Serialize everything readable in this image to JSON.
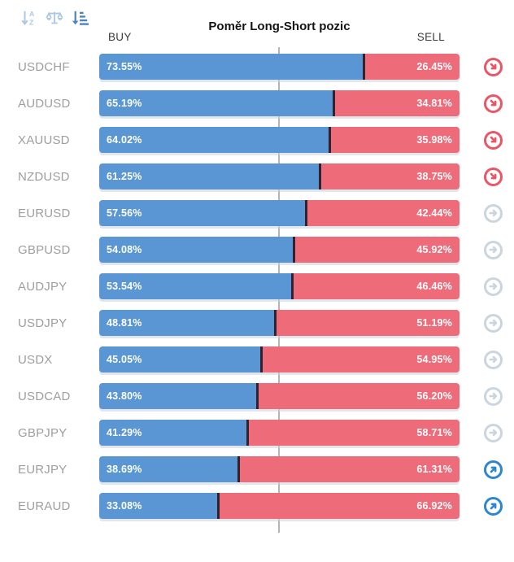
{
  "header": {
    "title": "Poměr Long-Short pozic",
    "buy_label": "BUY",
    "sell_label": "SELL"
  },
  "toolbar": {
    "icons": [
      {
        "name": "sort-alphabetical-icon",
        "state": "inactive"
      },
      {
        "name": "balance-scale-icon",
        "state": "inactive"
      },
      {
        "name": "sort-by-value-icon",
        "state": "active"
      }
    ]
  },
  "colors": {
    "buy": "#5996d3",
    "sell": "#ee6b7a",
    "divider": "#33222e",
    "centerline": "#b5b5b5",
    "label": "#9e9e9e",
    "title": "#141414",
    "header": "#3d3d3d",
    "trend_down": "#ec5565",
    "trend_neutral": "#cbd5e0",
    "trend_up": "#2d85d3",
    "toolbar_light": "#abc8e4",
    "toolbar_dark": "#4d84c0"
  },
  "chart_data": {
    "type": "bar",
    "orientation": "horizontal-stacked",
    "title": "Poměr Long-Short pozic",
    "xlim": [
      0,
      100
    ],
    "midline_pct": 50,
    "legend": [
      "BUY",
      "SELL"
    ],
    "categories": [
      "USDCHF",
      "AUDUSD",
      "XAUUSD",
      "NZDUSD",
      "EURUSD",
      "GBPUSD",
      "AUDJPY",
      "USDJPY",
      "USDX",
      "USDCAD",
      "GBPJPY",
      "EURJPY",
      "EURAUD"
    ],
    "series": [
      {
        "name": "BUY",
        "values": [
          73.55,
          65.19,
          64.02,
          61.25,
          57.56,
          54.08,
          53.54,
          48.81,
          45.05,
          43.8,
          41.29,
          38.69,
          33.08
        ]
      },
      {
        "name": "SELL",
        "values": [
          26.45,
          34.81,
          35.98,
          38.75,
          42.44,
          45.92,
          46.46,
          51.19,
          54.95,
          56.2,
          58.71,
          61.31,
          66.92
        ]
      }
    ],
    "rows": [
      {
        "symbol": "USDCHF",
        "buy": 73.55,
        "sell": 26.45,
        "buy_label": "73.55%",
        "sell_label": "26.45%",
        "trend": "down"
      },
      {
        "symbol": "AUDUSD",
        "buy": 65.19,
        "sell": 34.81,
        "buy_label": "65.19%",
        "sell_label": "34.81%",
        "trend": "down"
      },
      {
        "symbol": "XAUUSD",
        "buy": 64.02,
        "sell": 35.98,
        "buy_label": "64.02%",
        "sell_label": "35.98%",
        "trend": "down"
      },
      {
        "symbol": "NZDUSD",
        "buy": 61.25,
        "sell": 38.75,
        "buy_label": "61.25%",
        "sell_label": "38.75%",
        "trend": "down"
      },
      {
        "symbol": "EURUSD",
        "buy": 57.56,
        "sell": 42.44,
        "buy_label": "57.56%",
        "sell_label": "42.44%",
        "trend": "neutral"
      },
      {
        "symbol": "GBPUSD",
        "buy": 54.08,
        "sell": 45.92,
        "buy_label": "54.08%",
        "sell_label": "45.92%",
        "trend": "neutral"
      },
      {
        "symbol": "AUDJPY",
        "buy": 53.54,
        "sell": 46.46,
        "buy_label": "53.54%",
        "sell_label": "46.46%",
        "trend": "neutral"
      },
      {
        "symbol": "USDJPY",
        "buy": 48.81,
        "sell": 51.19,
        "buy_label": "48.81%",
        "sell_label": "51.19%",
        "trend": "neutral"
      },
      {
        "symbol": "USDX",
        "buy": 45.05,
        "sell": 54.95,
        "buy_label": "45.05%",
        "sell_label": "54.95%",
        "trend": "neutral"
      },
      {
        "symbol": "USDCAD",
        "buy": 43.8,
        "sell": 56.2,
        "buy_label": "43.80%",
        "sell_label": "56.20%",
        "trend": "neutral"
      },
      {
        "symbol": "GBPJPY",
        "buy": 41.29,
        "sell": 58.71,
        "buy_label": "41.29%",
        "sell_label": "58.71%",
        "trend": "neutral"
      },
      {
        "symbol": "EURJPY",
        "buy": 38.69,
        "sell": 61.31,
        "buy_label": "38.69%",
        "sell_label": "61.31%",
        "trend": "up"
      },
      {
        "symbol": "EURAUD",
        "buy": 33.08,
        "sell": 66.92,
        "buy_label": "33.08%",
        "sell_label": "66.92%",
        "trend": "up"
      }
    ]
  }
}
